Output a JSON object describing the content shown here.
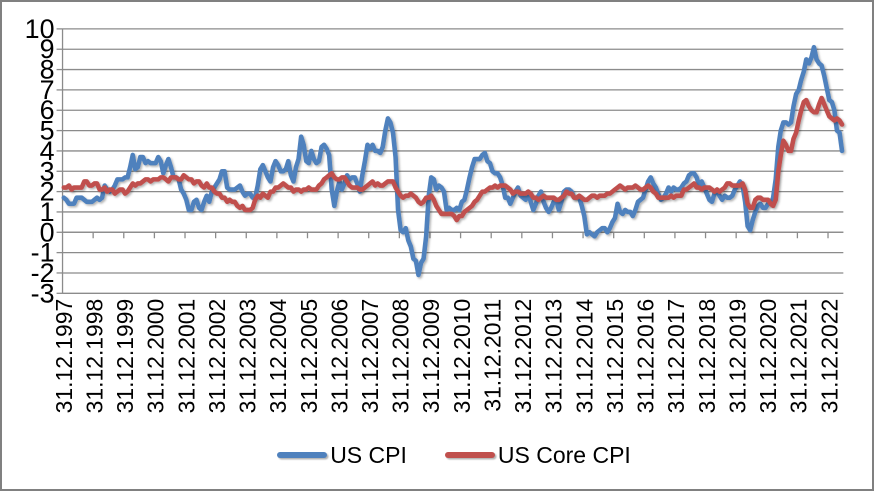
{
  "chart_data": {
    "type": "line",
    "title": "",
    "xlabel": "",
    "ylabel": "",
    "background_color": "#ffffff",
    "frame_border_color": "#808080",
    "grid_color": "#8b8b8b",
    "axis_text_color": "#000000",
    "grid": "horizontal",
    "legend_position": "bottom-center",
    "y_axis": {
      "min": -3,
      "max": 10,
      "step": 1,
      "tick_labels": [
        "10",
        "9",
        "8",
        "7",
        "6",
        "5",
        "4",
        "3",
        "2",
        "1",
        "0",
        "-1",
        "-2",
        "-3"
      ]
    },
    "x_axis": {
      "frequency": "monthly",
      "months_per_tick": 12,
      "tick_labels": [
        "31.12.1997",
        "31.12.1998",
        "31.12.1999",
        "31.12.2000",
        "31.12.2001",
        "31.12.2002",
        "31.12.2003",
        "31.12.2004",
        "31.12.2005",
        "31.12.2006",
        "31.12.2007",
        "31.12.2008",
        "31.12.2009",
        "31.12.2010",
        "31.12.2011",
        "31.12.2012",
        "31.12.2013",
        "31.12.2014",
        "31.12.2015",
        "31.12.2016",
        "31.12.2017",
        "31.12.2018",
        "31.12.2019",
        "31.12.2020",
        "31.12.2021",
        "31.12.2022"
      ]
    },
    "series": [
      {
        "name": "US CPI",
        "color": "#4F81BD",
        "values": [
          1.7,
          1.6,
          1.4,
          1.4,
          1.4,
          1.7,
          1.7,
          1.7,
          1.6,
          1.5,
          1.5,
          1.5,
          1.6,
          1.7,
          1.6,
          1.7,
          2.3,
          2.1,
          2.0,
          2.1,
          2.3,
          2.6,
          2.6,
          2.6,
          2.7,
          2.7,
          3.2,
          3.8,
          3.1,
          3.2,
          3.7,
          3.7,
          3.4,
          3.5,
          3.4,
          3.4,
          3.4,
          3.7,
          3.5,
          2.9,
          3.3,
          3.6,
          3.2,
          2.7,
          2.7,
          2.6,
          2.1,
          1.9,
          1.6,
          1.1,
          1.1,
          1.5,
          1.6,
          1.2,
          1.1,
          1.5,
          1.8,
          1.5,
          2.0,
          2.2,
          2.4,
          2.6,
          3.0,
          3.0,
          2.2,
          2.1,
          2.1,
          2.1,
          2.2,
          2.3,
          2.0,
          1.8,
          1.9,
          1.9,
          1.7,
          1.7,
          2.3,
          3.1,
          3.3,
          3.0,
          2.7,
          2.5,
          3.2,
          3.5,
          3.3,
          3.0,
          3.0,
          3.1,
          3.5,
          2.8,
          2.5,
          3.2,
          3.6,
          4.7,
          4.3,
          3.5,
          3.4,
          4.0,
          3.6,
          3.4,
          3.5,
          4.2,
          4.3,
          4.1,
          3.8,
          2.1,
          1.3,
          2.0,
          2.5,
          2.1,
          2.4,
          2.8,
          2.6,
          2.7,
          2.7,
          2.4,
          2.0,
          2.8,
          3.5,
          4.3,
          4.1,
          4.3,
          4.0,
          4.0,
          3.9,
          4.2,
          5.0,
          5.6,
          5.4,
          4.9,
          3.7,
          1.1,
          0.1,
          0.0,
          0.2,
          -0.4,
          -0.7,
          -1.3,
          -1.4,
          -2.1,
          -1.5,
          -1.3,
          -0.2,
          1.8,
          2.7,
          2.6,
          2.1,
          2.3,
          2.2,
          2.0,
          1.1,
          1.2,
          1.1,
          1.1,
          1.2,
          1.1,
          1.5,
          1.6,
          2.1,
          2.7,
          3.2,
          3.6,
          3.6,
          3.6,
          3.8,
          3.9,
          3.5,
          3.4,
          3.0,
          2.9,
          2.9,
          2.7,
          2.3,
          1.7,
          1.7,
          1.4,
          1.7,
          2.0,
          2.2,
          1.8,
          1.7,
          1.6,
          2.0,
          1.5,
          1.1,
          1.4,
          1.8,
          2.0,
          1.5,
          1.2,
          1.0,
          1.2,
          1.5,
          1.6,
          1.1,
          1.5,
          2.0,
          2.1,
          2.1,
          2.0,
          1.7,
          1.7,
          1.7,
          1.3,
          0.8,
          -0.1,
          0.0,
          -0.1,
          -0.2,
          0.0,
          0.1,
          0.2,
          0.2,
          0.0,
          0.2,
          0.5,
          0.7,
          1.4,
          1.0,
          0.9,
          1.1,
          1.0,
          1.0,
          0.8,
          1.1,
          1.5,
          1.6,
          1.7,
          2.1,
          2.5,
          2.7,
          2.4,
          2.2,
          1.9,
          1.6,
          1.7,
          1.9,
          2.2,
          2.0,
          2.2,
          2.1,
          2.1,
          2.2,
          2.4,
          2.5,
          2.8,
          2.9,
          2.9,
          2.7,
          2.3,
          2.5,
          2.2,
          1.9,
          1.6,
          1.5,
          1.9,
          2.0,
          1.8,
          1.6,
          1.8,
          1.7,
          1.7,
          1.8,
          2.1,
          2.3,
          2.5,
          2.3,
          1.5,
          0.3,
          0.1,
          0.6,
          1.0,
          1.3,
          1.4,
          1.2,
          1.2,
          1.4,
          1.4,
          1.7,
          2.6,
          4.2,
          5.0,
          5.4,
          5.4,
          5.3,
          5.4,
          6.2,
          6.8,
          7.0,
          7.5,
          7.9,
          8.5,
          8.3,
          8.6,
          9.1,
          8.5,
          8.3,
          8.2,
          7.7,
          7.1,
          6.5,
          6.4,
          6.0,
          5.0,
          4.9,
          4.0
        ]
      },
      {
        "name": "US Core CPI",
        "color": "#C0504D",
        "values": [
          2.2,
          2.2,
          2.3,
          2.1,
          2.2,
          2.2,
          2.2,
          2.2,
          2.5,
          2.5,
          2.3,
          2.3,
          2.4,
          2.4,
          2.1,
          2.1,
          2.2,
          2.0,
          2.1,
          2.1,
          1.9,
          2.0,
          2.1,
          2.1,
          1.9,
          2.0,
          2.2,
          2.4,
          2.3,
          2.4,
          2.4,
          2.5,
          2.6,
          2.6,
          2.5,
          2.6,
          2.6,
          2.6,
          2.7,
          2.7,
          2.6,
          2.5,
          2.7,
          2.7,
          2.7,
          2.6,
          2.6,
          2.8,
          2.7,
          2.6,
          2.6,
          2.4,
          2.5,
          2.5,
          2.3,
          2.2,
          2.4,
          2.2,
          2.2,
          2.0,
          1.9,
          1.9,
          1.7,
          1.7,
          1.5,
          1.6,
          1.5,
          1.5,
          1.3,
          1.2,
          1.3,
          1.1,
          1.1,
          1.1,
          1.2,
          1.6,
          1.8,
          1.7,
          1.9,
          1.8,
          1.7,
          2.0,
          2.0,
          2.2,
          2.2,
          2.3,
          2.4,
          2.3,
          2.2,
          2.2,
          2.0,
          2.1,
          2.1,
          2.0,
          2.1,
          2.1,
          2.2,
          2.1,
          2.1,
          2.1,
          2.3,
          2.4,
          2.6,
          2.7,
          2.8,
          2.9,
          2.7,
          2.6,
          2.6,
          2.7,
          2.7,
          2.5,
          2.3,
          2.2,
          2.2,
          2.2,
          2.1,
          2.1,
          2.2,
          2.3,
          2.4,
          2.5,
          2.3,
          2.4,
          2.3,
          2.3,
          2.4,
          2.5,
          2.5,
          2.5,
          2.2,
          2.0,
          1.8,
          1.7,
          1.8,
          1.8,
          1.9,
          1.8,
          1.7,
          1.5,
          1.4,
          1.5,
          1.7,
          1.7,
          1.8,
          1.6,
          1.3,
          1.1,
          0.9,
          0.9,
          0.9,
          0.9,
          0.9,
          0.8,
          0.6,
          0.8,
          0.8,
          1.0,
          1.1,
          1.2,
          1.3,
          1.5,
          1.6,
          1.8,
          2.0,
          2.0,
          2.1,
          2.2,
          2.2,
          2.3,
          2.2,
          2.3,
          2.3,
          2.3,
          2.2,
          2.1,
          1.9,
          2.0,
          2.0,
          1.9,
          1.9,
          1.9,
          2.0,
          1.9,
          1.7,
          1.7,
          1.6,
          1.7,
          1.8,
          1.7,
          1.7,
          1.7,
          1.7,
          1.6,
          1.6,
          1.7,
          1.8,
          2.0,
          1.9,
          1.9,
          1.7,
          1.7,
          1.8,
          1.7,
          1.6,
          1.6,
          1.7,
          1.8,
          1.8,
          1.7,
          1.8,
          1.8,
          1.8,
          1.9,
          1.9,
          2.0,
          2.1,
          2.2,
          2.3,
          2.2,
          2.1,
          2.2,
          2.2,
          2.2,
          2.3,
          2.2,
          2.1,
          2.1,
          2.2,
          2.3,
          2.2,
          2.0,
          1.9,
          1.7,
          1.7,
          1.7,
          1.7,
          1.7,
          1.8,
          1.7,
          1.8,
          1.8,
          1.8,
          2.1,
          2.1,
          2.2,
          2.3,
          2.4,
          2.2,
          2.2,
          2.1,
          2.2,
          2.2,
          2.2,
          2.1,
          2.0,
          2.1,
          2.0,
          2.1,
          2.2,
          2.4,
          2.4,
          2.3,
          2.3,
          2.3,
          2.3,
          2.4,
          2.1,
          1.4,
          1.2,
          1.2,
          1.6,
          1.7,
          1.7,
          1.6,
          1.6,
          1.6,
          1.4,
          1.3,
          1.6,
          3.0,
          3.8,
          4.5,
          4.3,
          4.0,
          4.0,
          4.6,
          4.9,
          5.5,
          6.0,
          6.4,
          6.5,
          6.2,
          6.0,
          5.9,
          5.9,
          6.3,
          6.6,
          6.3,
          6.0,
          5.7,
          5.6,
          5.5,
          5.6,
          5.5,
          5.3
        ]
      }
    ]
  }
}
